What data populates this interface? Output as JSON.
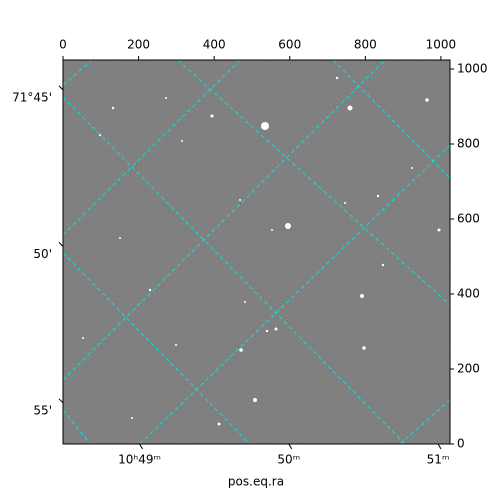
{
  "chart_data": {
    "type": "image",
    "xlabel": "pos.eq.ra",
    "xlim": [
      0,
      1024
    ],
    "xticks": [
      0,
      200,
      400,
      600,
      800,
      1000
    ],
    "ylim": [
      0,
      1024
    ],
    "yticks": [
      0,
      200,
      400,
      600,
      800,
      1000
    ],
    "ralim": [
      48.487,
      51.08
    ],
    "raticks": [
      {
        "value": 49,
        "label": "10ʰ49ᵐ"
      },
      {
        "value": 50,
        "label": "50ᵐ"
      },
      {
        "value": 51,
        "label": "51ᵐ"
      }
    ],
    "declim": [
      43.79,
      56.06
    ],
    "decticks": [
      {
        "value": 45,
        "label": "71°45'"
      },
      {
        "value": 50,
        "label": "50'"
      },
      {
        "value": 55,
        "label": "55'"
      }
    ],
    "grid_color": "#00e5e5"
  }
}
